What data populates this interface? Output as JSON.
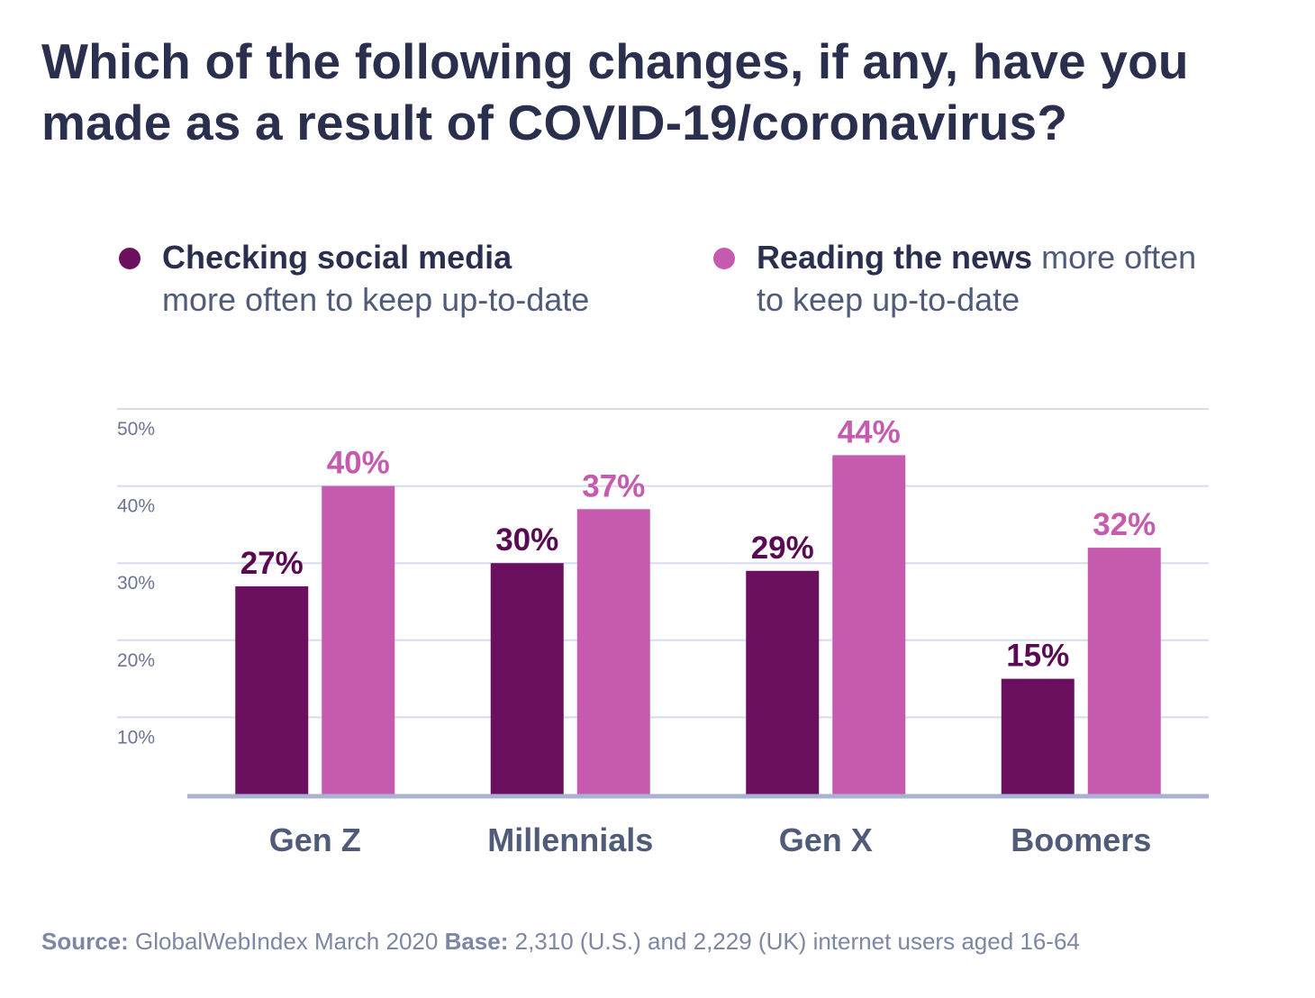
{
  "title_line1": "Which of the following changes, if any, have you",
  "title_line2": "made as a result of COVID-19/coronavirus?",
  "legend": {
    "social": {
      "bold": "Checking social media",
      "rest": "more often to keep up-to-date"
    },
    "news": {
      "bold": "Reading the news",
      "rest_line1": "more often",
      "rest_line2": "to keep up-to-date"
    }
  },
  "colors": {
    "social": "#6b0f5f",
    "news": "#c55aae",
    "social_label": "#5a0a52",
    "news_label": "#c55aae",
    "grid": "#d7dced",
    "axis": "#aab2d4"
  },
  "chart_data": {
    "type": "bar",
    "categories": [
      "Gen Z",
      "Millennials",
      "Gen X",
      "Boomers"
    ],
    "series": [
      {
        "name": "Checking social media more often to keep up-to-date",
        "values": [
          27,
          30,
          29,
          15
        ]
      },
      {
        "name": "Reading the news more often to keep up-to-date",
        "values": [
          40,
          37,
          44,
          32
        ]
      }
    ],
    "value_labels": [
      [
        "27%",
        "30%",
        "29%",
        "15%"
      ],
      [
        "40%",
        "37%",
        "44%",
        "32%"
      ]
    ],
    "y_ticks": [
      "10%",
      "20%",
      "30%",
      "40%",
      "50%"
    ],
    "y_tick_values": [
      10,
      20,
      30,
      40,
      50
    ],
    "ylim": [
      0,
      50
    ],
    "grid": true,
    "legend_position": "top"
  },
  "source": {
    "source_label": "Source:",
    "source_text": "GlobalWebIndex March 2020",
    "base_label": "Base:",
    "base_text": "2,310 (U.S.) and 2,229 (UK) internet users aged 16-64"
  }
}
